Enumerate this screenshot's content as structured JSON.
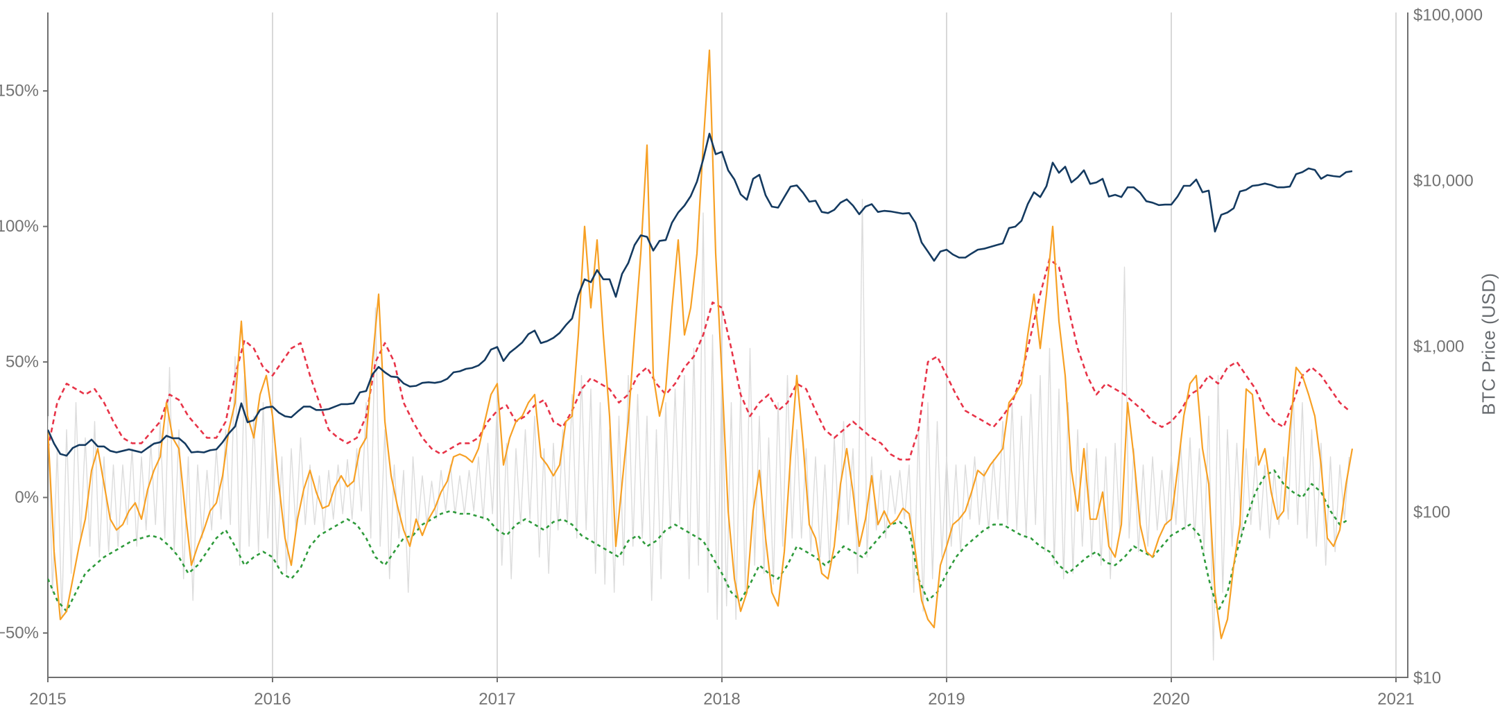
{
  "colors": {
    "background": "#ffffff",
    "grid": "#cfcfcf",
    "axis": "#6f6f6f",
    "tick_label": "#737373",
    "price_line": "#143a60",
    "rolling_return": "#f7a024",
    "upper_band": "#e73347",
    "lower_band": "#2d9a3a",
    "fast_change": "#dcdcdc"
  },
  "chart_data": {
    "type": "line",
    "title": "",
    "x": {
      "range": [
        2015.0,
        2021.05
      ],
      "gridline_years": [
        2016,
        2017,
        2018,
        2019,
        2020,
        2021
      ],
      "ticks": [
        {
          "t": 2015,
          "label": "2015"
        },
        {
          "t": 2016,
          "label": "2016"
        },
        {
          "t": 2017,
          "label": "2017"
        },
        {
          "t": 2018,
          "label": "2018"
        },
        {
          "t": 2019,
          "label": "2019"
        },
        {
          "t": 2020,
          "label": "2020"
        },
        {
          "t": 2021,
          "label": "2021"
        }
      ]
    },
    "y_left": {
      "unit": "%",
      "range": [
        -66,
        179
      ],
      "ticks": [
        {
          "v": 150,
          "label": "150%"
        },
        {
          "v": 100,
          "label": "100%"
        },
        {
          "v": 50,
          "label": "50%"
        },
        {
          "v": 0,
          "label": "0%"
        },
        {
          "v": -50,
          "label": "−50%"
        }
      ]
    },
    "y_right": {
      "label": "BTC Price (USD)",
      "scale": "log",
      "range": [
        10,
        105000
      ],
      "ticks": [
        {
          "v": 100000,
          "label": "$100,000"
        },
        {
          "v": 10000,
          "label": "$10,000"
        },
        {
          "v": 1000,
          "label": "$1,000"
        },
        {
          "v": 100,
          "label": "$100"
        },
        {
          "v": 10,
          "label": "$10"
        }
      ]
    },
    "legend": "none",
    "series": [
      {
        "name": "fast-percent-change",
        "axis": "left",
        "color_key": "fast_change",
        "width": 1.4,
        "dash": null,
        "t0": 2015.0,
        "dt": 0.0208333,
        "values": [
          30,
          -35,
          18,
          -44,
          25,
          -28,
          35,
          -15,
          22,
          -18,
          28,
          -22,
          15,
          -20,
          12,
          -18,
          12,
          -10,
          18,
          -18,
          15,
          -12,
          20,
          -10,
          28,
          -15,
          48,
          -20,
          25,
          -30,
          15,
          -38,
          12,
          -15,
          10,
          -12,
          18,
          -8,
          25,
          -10,
          52,
          -25,
          45,
          -18,
          30,
          -20,
          35,
          -15,
          20,
          -25,
          15,
          -28,
          18,
          -12,
          22,
          -10,
          12,
          -10,
          8,
          -12,
          10,
          -8,
          12,
          -6,
          14,
          -8,
          18,
          -5,
          35,
          -15,
          70,
          -18,
          25,
          -30,
          12,
          -15,
          10,
          -35,
          15,
          -12,
          8,
          -10,
          6,
          -8,
          10,
          -5,
          12,
          -6,
          8,
          -6,
          10,
          -5,
          15,
          -8,
          20,
          -6,
          35,
          -25,
          20,
          -30,
          18,
          -10,
          25,
          -8,
          30,
          -22,
          18,
          -28,
          20,
          -12,
          25,
          -10,
          38,
          -15,
          45,
          -12,
          40,
          -28,
          35,
          -32,
          25,
          -35,
          30,
          -25,
          45,
          -18,
          38,
          -15,
          30,
          -38,
          25,
          -30,
          35,
          -12,
          40,
          -10,
          45,
          -30,
          55,
          -25,
          105,
          -35,
          60,
          -45,
          48,
          -40,
          35,
          -45,
          40,
          -35,
          55,
          -25,
          30,
          -28,
          22,
          -32,
          35,
          -18,
          45,
          -15,
          25,
          -15,
          18,
          -20,
          15,
          -22,
          12,
          -25,
          22,
          -12,
          28,
          -10,
          18,
          -28,
          110,
          -22,
          15,
          -12,
          10,
          -15,
          8,
          -6,
          10,
          -8,
          12,
          -35,
          25,
          -42,
          35,
          -30,
          28,
          -22,
          15,
          -18,
          12,
          -20,
          12,
          -8,
          15,
          -10,
          10,
          -12,
          14,
          -8,
          28,
          -10,
          35,
          -12,
          30,
          -15,
          38,
          -10,
          45,
          -20,
          55,
          -25,
          40,
          -30,
          35,
          -28,
          25,
          -18,
          20,
          -22,
          18,
          -25,
          15,
          -30,
          20,
          -12,
          85,
          -15,
          18,
          -20,
          12,
          -18,
          15,
          -12,
          10,
          -10,
          15,
          -10,
          20,
          -12,
          22,
          -15,
          18,
          -20,
          30,
          -60,
          45,
          -35,
          25,
          -18,
          20,
          -15,
          18,
          -10,
          15,
          -12,
          12,
          -15,
          10,
          -10,
          15,
          -8,
          40,
          -10,
          35,
          -15,
          25,
          -18,
          20,
          -25,
          15,
          -20,
          12,
          -8,
          15
        ]
      },
      {
        "name": "lower-band",
        "axis": "left",
        "color_key": "lower_band",
        "width": 2.6,
        "dash": [
          5,
          5
        ],
        "t0": 2015.0,
        "dt": 0.0416667,
        "values": [
          -30,
          -38,
          -42,
          -35,
          -28,
          -25,
          -22,
          -20,
          -18,
          -16,
          -15,
          -14,
          -15,
          -18,
          -22,
          -28,
          -25,
          -20,
          -15,
          -12,
          -18,
          -25,
          -22,
          -20,
          -22,
          -28,
          -30,
          -26,
          -18,
          -14,
          -12,
          -10,
          -8,
          -10,
          -15,
          -22,
          -25,
          -20,
          -15,
          -14,
          -10,
          -8,
          -6,
          -5,
          -6,
          -6,
          -7,
          -8,
          -12,
          -14,
          -10,
          -8,
          -10,
          -12,
          -9,
          -8,
          -10,
          -14,
          -16,
          -18,
          -20,
          -22,
          -16,
          -14,
          -18,
          -16,
          -12,
          -10,
          -12,
          -14,
          -16,
          -22,
          -28,
          -35,
          -38,
          -32,
          -25,
          -28,
          -30,
          -25,
          -18,
          -20,
          -22,
          -25,
          -22,
          -18,
          -20,
          -22,
          -18,
          -14,
          -10,
          -9,
          -12,
          -30,
          -38,
          -35,
          -28,
          -22,
          -18,
          -15,
          -12,
          -10,
          -10,
          -12,
          -14,
          -15,
          -18,
          -20,
          -25,
          -28,
          -25,
          -22,
          -20,
          -24,
          -25,
          -22,
          -18,
          -20,
          -22,
          -18,
          -14,
          -12,
          -10,
          -14,
          -30,
          -42,
          -35,
          -20,
          -8,
          2,
          8,
          10,
          5,
          2,
          0,
          5,
          2,
          -5,
          -10,
          -8
        ]
      },
      {
        "name": "upper-band",
        "axis": "left",
        "color_key": "upper_band",
        "width": 2.6,
        "dash": [
          7,
          5
        ],
        "t0": 2015.0,
        "dt": 0.0416667,
        "values": [
          18,
          35,
          42,
          40,
          38,
          40,
          35,
          28,
          22,
          20,
          20,
          24,
          28,
          38,
          36,
          30,
          26,
          22,
          22,
          28,
          45,
          58,
          55,
          48,
          45,
          50,
          55,
          57,
          45,
          35,
          25,
          22,
          20,
          22,
          30,
          50,
          57,
          50,
          35,
          28,
          22,
          18,
          16,
          18,
          20,
          20,
          22,
          28,
          32,
          34,
          28,
          30,
          34,
          36,
          28,
          26,
          32,
          40,
          44,
          42,
          40,
          35,
          38,
          45,
          48,
          42,
          38,
          42,
          48,
          52,
          60,
          72,
          70,
          55,
          38,
          30,
          35,
          38,
          32,
          35,
          42,
          40,
          32,
          25,
          22,
          25,
          28,
          25,
          22,
          20,
          16,
          14,
          14,
          25,
          50,
          52,
          45,
          38,
          32,
          30,
          28,
          26,
          30,
          35,
          45,
          60,
          75,
          88,
          85,
          70,
          55,
          45,
          38,
          42,
          40,
          38,
          35,
          32,
          28,
          26,
          28,
          32,
          38,
          40,
          45,
          42,
          48,
          50,
          45,
          40,
          32,
          28,
          26,
          35,
          45,
          48,
          45,
          40,
          35,
          32
        ]
      },
      {
        "name": "rolling-return",
        "axis": "left",
        "color_key": "rolling_return",
        "width": 2.2,
        "dash": null,
        "t0": 2015.0,
        "dt": 0.0277778,
        "values": [
          25,
          -20,
          -45,
          -42,
          -30,
          -18,
          -8,
          10,
          18,
          5,
          -8,
          -12,
          -10,
          -5,
          -2,
          -8,
          3,
          10,
          15,
          35,
          22,
          18,
          -5,
          -25,
          -18,
          -12,
          -5,
          -2,
          8,
          25,
          35,
          65,
          30,
          22,
          38,
          45,
          30,
          5,
          -15,
          -25,
          -8,
          3,
          10,
          2,
          -4,
          -3,
          4,
          8,
          4,
          6,
          18,
          22,
          50,
          75,
          28,
          8,
          -3,
          -12,
          -18,
          -8,
          -14,
          -8,
          -4,
          2,
          6,
          15,
          16,
          15,
          13,
          18,
          28,
          38,
          42,
          12,
          22,
          28,
          30,
          35,
          38,
          15,
          12,
          8,
          12,
          28,
          30,
          60,
          100,
          70,
          95,
          60,
          30,
          -18,
          5,
          28,
          60,
          90,
          130,
          45,
          30,
          40,
          70,
          95,
          60,
          70,
          90,
          130,
          165,
          90,
          45,
          -5,
          -30,
          -42,
          -35,
          -5,
          10,
          -15,
          -35,
          -40,
          -20,
          15,
          45,
          20,
          -10,
          -15,
          -28,
          -30,
          -18,
          5,
          18,
          2,
          -18,
          -8,
          8,
          -10,
          -5,
          -10,
          -8,
          -4,
          -6,
          -20,
          -38,
          -45,
          -48,
          -25,
          -18,
          -10,
          -8,
          -5,
          2,
          10,
          8,
          12,
          15,
          18,
          35,
          38,
          42,
          60,
          75,
          55,
          75,
          100,
          65,
          45,
          10,
          -5,
          18,
          -8,
          -8,
          2,
          -18,
          -22,
          -10,
          35,
          15,
          -10,
          -20,
          -22,
          -15,
          -10,
          -8,
          10,
          30,
          42,
          45,
          18,
          5,
          -35,
          -52,
          -45,
          -25,
          -10,
          40,
          38,
          12,
          18,
          2,
          -8,
          -5,
          25,
          48,
          45,
          38,
          30,
          12,
          -15,
          -18,
          -12,
          5,
          18
        ]
      },
      {
        "name": "btc-price-usd",
        "axis": "right",
        "color_key": "price_line",
        "width": 2.6,
        "dash": null,
        "t0": 2015.0,
        "dt": 0.0277778,
        "values": [
          315,
          260,
          225,
          220,
          245,
          255,
          255,
          275,
          250,
          250,
          235,
          230,
          235,
          240,
          235,
          230,
          245,
          260,
          265,
          290,
          280,
          280,
          260,
          230,
          232,
          230,
          237,
          240,
          265,
          300,
          330,
          455,
          350,
          360,
          415,
          430,
          435,
          400,
          380,
          375,
          405,
          435,
          435,
          415,
          415,
          420,
          435,
          450,
          450,
          455,
          530,
          540,
          680,
          755,
          700,
          660,
          655,
          600,
          575,
          580,
          605,
          610,
          605,
          615,
          640,
          700,
          710,
          735,
          745,
          770,
          830,
          960,
          995,
          820,
          920,
          985,
          1060,
          1190,
          1250,
          1050,
          1080,
          1130,
          1210,
          1350,
          1480,
          2050,
          2550,
          2450,
          2900,
          2550,
          2550,
          2000,
          2750,
          3200,
          4100,
          4700,
          4600,
          3800,
          4350,
          4400,
          5600,
          6450,
          7100,
          8100,
          9900,
          13500,
          19300,
          14500,
          15000,
          11600,
          10200,
          8300,
          7700,
          10300,
          10900,
          8200,
          7000,
          6900,
          8000,
          9250,
          9400,
          8500,
          7500,
          7600,
          6500,
          6400,
          6700,
          7400,
          7750,
          7100,
          6300,
          7000,
          7250,
          6500,
          6600,
          6550,
          6450,
          6350,
          6400,
          5600,
          4250,
          3750,
          3300,
          3750,
          3850,
          3600,
          3450,
          3450,
          3650,
          3850,
          3900,
          4000,
          4100,
          4200,
          5200,
          5300,
          5750,
          7250,
          8550,
          8000,
          9300,
          12900,
          11200,
          12200,
          9800,
          10500,
          11600,
          9600,
          9800,
          10300,
          8050,
          8250,
          8000,
          9150,
          9150,
          8500,
          7550,
          7400,
          7150,
          7200,
          7200,
          8050,
          9350,
          9350,
          10200,
          8550,
          8750,
          4950,
          6250,
          6450,
          6850,
          8650,
          8850,
          9350,
          9450,
          9650,
          9450,
          9150,
          9150,
          9250,
          11000,
          11300,
          11900,
          11650,
          10300,
          10850,
          10700,
          10600,
          11300,
          11450
        ]
      }
    ]
  }
}
